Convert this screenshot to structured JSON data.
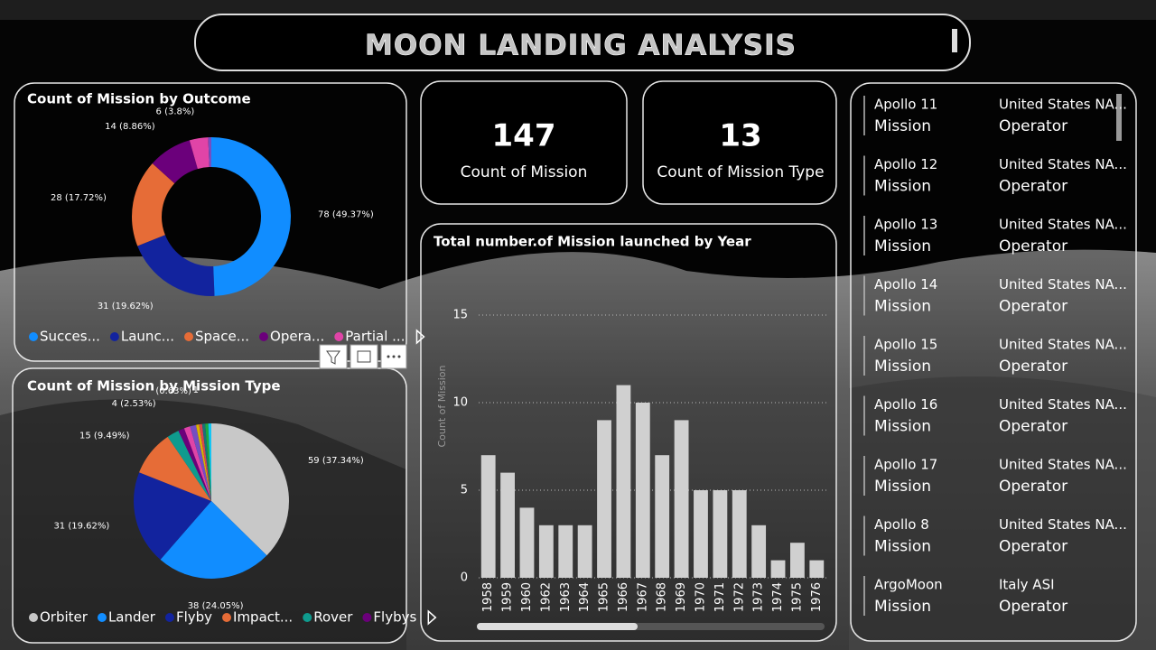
{
  "header": {
    "title": "MOON LANDING ANALYSIS"
  },
  "cards": [
    {
      "value": 147,
      "label": "Count of Mission"
    },
    {
      "value": 13,
      "label": "Count of Mission Type"
    }
  ],
  "list": {
    "rows": [
      {
        "name": "Apollo 11",
        "kind": "Mission",
        "operator": "United States NA...",
        "role": "Operator"
      },
      {
        "name": "Apollo 12",
        "kind": "Mission",
        "operator": "United States NA...",
        "role": "Operator"
      },
      {
        "name": "Apollo 13",
        "kind": "Mission",
        "operator": "United States NA...",
        "role": "Operator"
      },
      {
        "name": "Apollo 14",
        "kind": "Mission",
        "operator": "United States NA...",
        "role": "Operator"
      },
      {
        "name": "Apollo 15",
        "kind": "Mission",
        "operator": "United States NA...",
        "role": "Operator"
      },
      {
        "name": "Apollo 16",
        "kind": "Mission",
        "operator": "United States NA...",
        "role": "Operator"
      },
      {
        "name": "Apollo 17",
        "kind": "Mission",
        "operator": "United States NA...",
        "role": "Operator"
      },
      {
        "name": "Apollo 8",
        "kind": "Mission",
        "operator": "United States NA...",
        "role": "Operator"
      },
      {
        "name": "ArgoMoon",
        "kind": "Mission",
        "operator": "Italy ASI",
        "role": "Operator"
      }
    ]
  },
  "chart_data": [
    {
      "type": "donut",
      "title": "Count of Mission by Outcome",
      "categories": [
        "Succes...",
        "Launc...",
        "Space...",
        "Opera...",
        "Partial ...",
        null
      ],
      "values": [
        78,
        31,
        28,
        14,
        6,
        1
      ],
      "value_labels": [
        "78 (49.37%)",
        "31 (19.62%)",
        "28 (17.72%)",
        "14 (8.86%)",
        "6 (3.8%)",
        null
      ],
      "colors": [
        "#118DFF",
        "#12239E",
        "#E66C37",
        "#6B007B",
        "#E044A7",
        "#744EC2"
      ]
    },
    {
      "type": "pie",
      "title": "Count of Mission by Mission Type",
      "categories": [
        "Orbiter",
        "Lander",
        "Flyby",
        "Impact...",
        "Rover",
        "Flybys",
        null,
        null,
        null,
        null,
        null,
        null,
        null
      ],
      "values": [
        59,
        38,
        31,
        15,
        4,
        2,
        2,
        2,
        1,
        1,
        1,
        1,
        1
      ],
      "value_labels": [
        "59 (37.34%)",
        "38 (24.05%)",
        "31 (19.62%)",
        "15 (9.49%)",
        "4 (2.53%)",
        null,
        null,
        null,
        "(0.63%)",
        "1",
        null,
        null,
        null
      ],
      "colors": [
        "#C8C8C8",
        "#118DFF",
        "#12239E",
        "#E66C37",
        "#0F9B8E",
        "#6B007B",
        "#E044A7",
        "#744EC2",
        "#D9B300",
        "#D64550",
        "#197278",
        "#1AAB40",
        "#15C6F4"
      ]
    },
    {
      "type": "bar",
      "title": "Total number.of Mission launched by Year",
      "ylabel": "Count of Mission",
      "categories": [
        "1958",
        "1959",
        "1960",
        "1962",
        "1963",
        "1964",
        "1965",
        "1966",
        "1967",
        "1968",
        "1969",
        "1970",
        "1971",
        "1972",
        "1973",
        "1974",
        "1975",
        "1976"
      ],
      "values": [
        7,
        6,
        4,
        3,
        3,
        3,
        9,
        11,
        10,
        7,
        9,
        5,
        5,
        5,
        3,
        1,
        2,
        1
      ],
      "color": "#D0D0D0",
      "ylim": [
        0,
        15
      ],
      "yticks": [
        0,
        5,
        10,
        15
      ],
      "grid": true
    }
  ]
}
